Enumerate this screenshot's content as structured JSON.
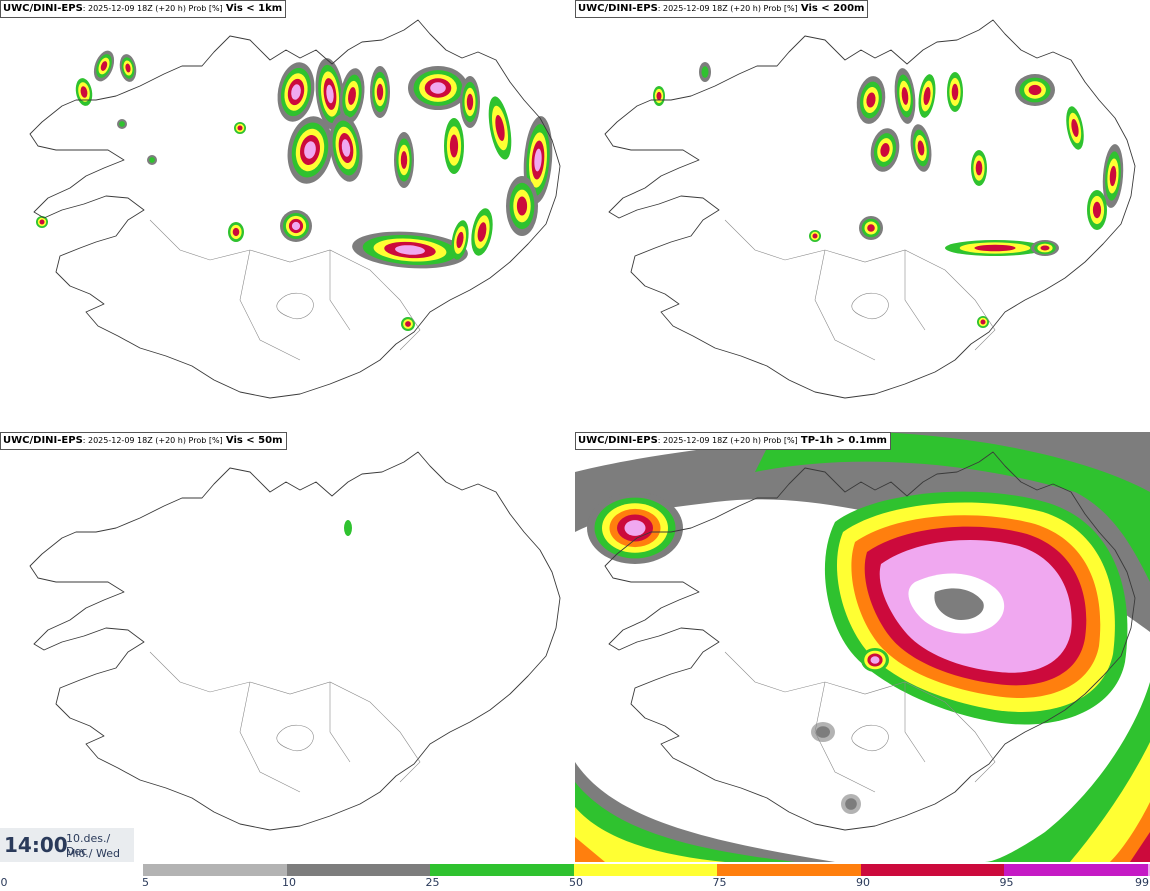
{
  "panels": [
    {
      "model": "UWC/DINI-EPS",
      "meta": ": 2025-12-09 18Z (+20 h) Prob [%]",
      "param": "Vis < 1km"
    },
    {
      "model": "UWC/DINI-EPS",
      "meta": ": 2025-12-09 18Z (+20 h) Prob [%]",
      "param": "Vis < 200m"
    },
    {
      "model": "UWC/DINI-EPS",
      "meta": ": 2025-12-09 18Z (+20 h) Prob [%]",
      "param": "Vis < 50m"
    },
    {
      "model": "UWC/DINI-EPS",
      "meta": ": 2025-12-09 18Z (+20 h) Prob [%]",
      "param": "TP-1h > 0.1mm"
    }
  ],
  "valid_time": {
    "time": "14:00",
    "date": "10.des./ Dec",
    "weekday": "Mið./ Wed"
  },
  "colorbar": {
    "ticks": [
      "0",
      "5",
      "10",
      "25",
      "50",
      "75",
      "90",
      "95",
      "99"
    ],
    "colors": [
      "#ffffff",
      "#b3b3b3",
      "#7d7d7d",
      "#2fc22f",
      "#ffff33",
      "#ff7f0e",
      "#cc0a3c",
      "#c51ac5",
      "#f0a8f0"
    ]
  }
}
